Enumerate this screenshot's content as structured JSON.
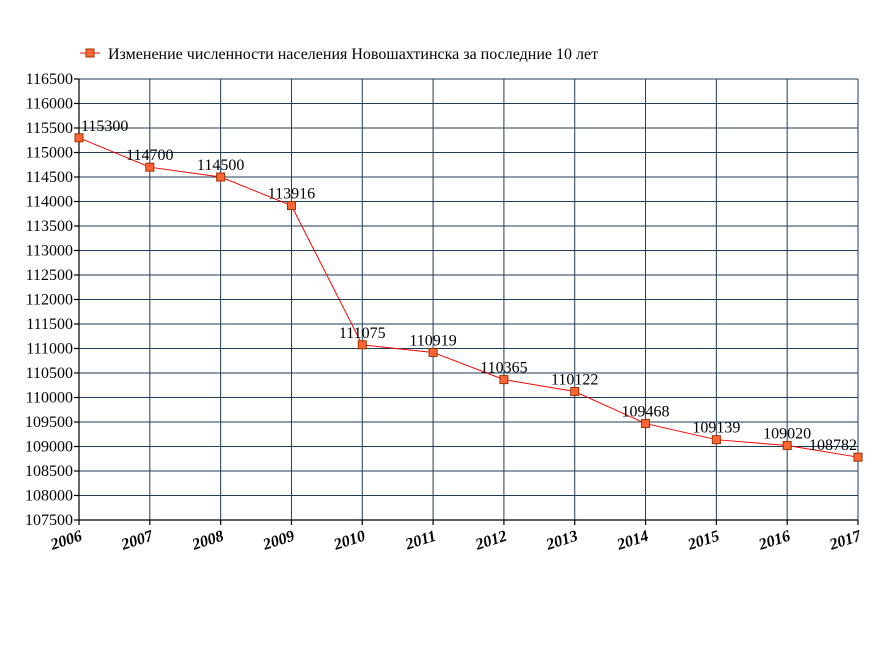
{
  "chart_data": {
    "type": "line",
    "legend": "Изменение численности населения Новошахтинска за последние 10 лет",
    "legend_position": "top",
    "categories": [
      "2006",
      "2007",
      "2008",
      "2009",
      "2010",
      "2011",
      "2012",
      "2013",
      "2014",
      "2015",
      "2016",
      "2017"
    ],
    "series": [
      {
        "name": "Изменение численности населения Новошахтинска за последние 10 лет",
        "values": [
          115300,
          114700,
          114500,
          113916,
          111075,
          110919,
          110365,
          110122,
          109468,
          109139,
          109020,
          108782
        ],
        "labels": [
          "115300",
          "114700",
          "114500",
          "113916",
          "111075",
          "110919",
          "110365",
          "110122",
          "109468",
          "109139",
          "109020",
          "108782"
        ]
      }
    ],
    "ylim": [
      107500,
      116500
    ],
    "ystep": 500,
    "yticks": [
      "107500",
      "108000",
      "108500",
      "109000",
      "109500",
      "110000",
      "110500",
      "111000",
      "111500",
      "112000",
      "112500",
      "113000",
      "113500",
      "114000",
      "114500",
      "115000",
      "115500",
      "116000",
      "116500"
    ],
    "grid": true,
    "colors": {
      "line": "#ff0000",
      "marker_fill": "#ff6633",
      "marker_stroke": "#993300",
      "grid": "#1f3b57"
    }
  }
}
